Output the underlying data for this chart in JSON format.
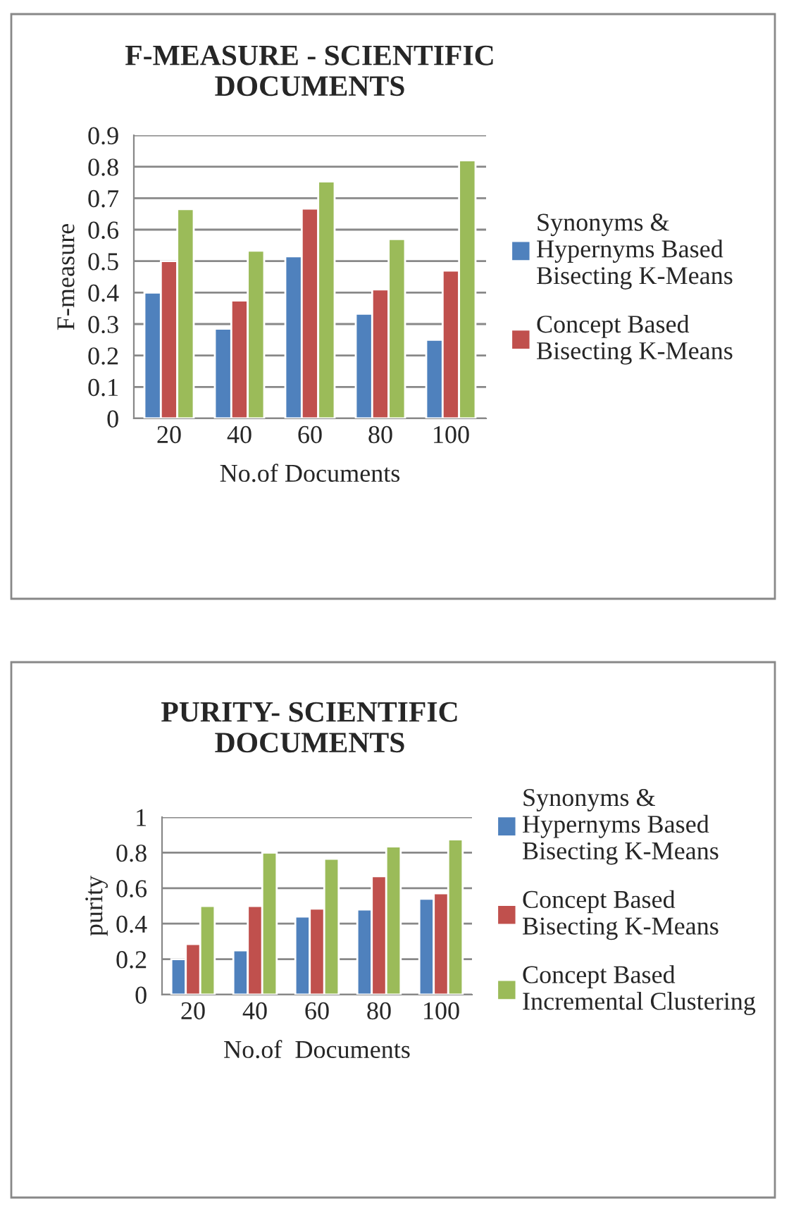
{
  "chart_data": [
    {
      "type": "bar",
      "title": "F-MEASURE - SCIENTIFIC DOCUMENTS",
      "xlabel": "No.of Documents",
      "ylabel": "F-measure",
      "categories": [
        "20",
        "40",
        "60",
        "80",
        "100"
      ],
      "ylim": [
        0,
        0.9
      ],
      "yticks": [
        0,
        0.1,
        0.2,
        0.3,
        0.4,
        0.5,
        0.6,
        0.7,
        0.8,
        0.9
      ],
      "grid": "y",
      "legend": "right",
      "series": [
        {
          "name": "Synonyms & Hypernyms Based Bisecting K-Means",
          "color": "#4f81bd",
          "values": [
            0.4,
            0.285,
            0.515,
            0.333,
            0.25
          ]
        },
        {
          "name": "Concept Based Bisecting K-Means",
          "color": "#c0504d",
          "values": [
            0.5,
            0.375,
            0.667,
            0.41,
            0.47
          ]
        },
        {
          "color": "#9bbb59",
          "values": [
            0.665,
            0.533,
            0.753,
            0.57,
            0.82
          ]
        }
      ]
    },
    {
      "type": "bar",
      "title": "PURITY- SCIENTIFIC DOCUMENTS",
      "xlabel": "No.of  Documents",
      "ylabel": "purity",
      "categories": [
        "20",
        "40",
        "60",
        "80",
        "100"
      ],
      "ylim": [
        0,
        1
      ],
      "yticks": [
        0,
        0.2,
        0.4,
        0.6,
        0.8,
        1
      ],
      "grid": "y",
      "legend": "right",
      "series": [
        {
          "name": "Synonyms & Hypernyms Based Bisecting K-Means",
          "color": "#4f81bd",
          "values": [
            0.2,
            0.25,
            0.44,
            0.48,
            0.54
          ]
        },
        {
          "name": "Concept Based Bisecting K-Means",
          "color": "#c0504d",
          "values": [
            0.285,
            0.5,
            0.485,
            0.667,
            0.571
          ]
        },
        {
          "name": "Concept Based Incremental Clustering",
          "color": "#9bbb59",
          "values": [
            0.5,
            0.8,
            0.765,
            0.835,
            0.875
          ]
        }
      ]
    }
  ]
}
